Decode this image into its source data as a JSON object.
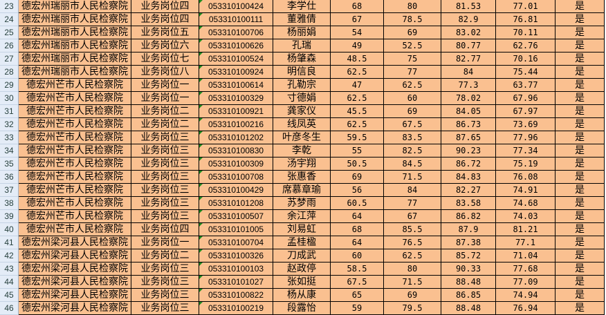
{
  "colors": {
    "cell_fill": "#fac090",
    "row_header": "#e4ecf7",
    "error_indicator": "#1f8a1f"
  },
  "rows": [
    {
      "n": "23",
      "org": "德宏州瑞丽市人民检察院",
      "post": "业务岗位四",
      "id": "053310100424",
      "name": "李学仕",
      "s1": "68",
      "s2": "80",
      "s3": "81.53",
      "total": "77.01",
      "pass": "是"
    },
    {
      "n": "24",
      "org": "德宏州瑞丽市人民检察院",
      "post": "业务岗位四",
      "id": "053310100111",
      "name": "董雅倩",
      "s1": "67",
      "s2": "78.5",
      "s3": "82.9",
      "total": "76.81",
      "pass": "是"
    },
    {
      "n": "25",
      "org": "德宏州瑞丽市人民检察院",
      "post": "业务岗位五",
      "id": "053310100706",
      "name": "杨丽娟",
      "s1": "54",
      "s2": "69",
      "s3": "83.02",
      "total": "70.11",
      "pass": "是"
    },
    {
      "n": "26",
      "org": "德宏州瑞丽市人民检察院",
      "post": "业务岗位六",
      "id": "053310100626",
      "name": "孔瑞",
      "s1": "49",
      "s2": "52.5",
      "s3": "80.77",
      "total": "62.76",
      "pass": "是"
    },
    {
      "n": "27",
      "org": "德宏州瑞丽市人民检察院",
      "post": "业务岗位七",
      "id": "053310100524",
      "name": "杨肇森",
      "s1": "48.5",
      "s2": "75",
      "s3": "82.77",
      "total": "70.16",
      "pass": "是"
    },
    {
      "n": "28",
      "org": "德宏州瑞丽市人民检察院",
      "post": "业务岗位八",
      "id": "053310100924",
      "name": "明信良",
      "s1": "62.5",
      "s2": "77",
      "s3": "84",
      "total": "75.44",
      "pass": "是"
    },
    {
      "n": "29",
      "org": "德宏州芒市人民检察院",
      "post": "业务岗位一",
      "id": "053310100614",
      "name": "孔勒宗",
      "s1": "47",
      "s2": "62.5",
      "s3": "77.3",
      "total": "63.77",
      "pass": "是"
    },
    {
      "n": "30",
      "org": "德宏州芒市人民检察院",
      "post": "业务岗位一",
      "id": "053310100329",
      "name": "寸德娟",
      "s1": "62.5",
      "s2": "60",
      "s3": "78.02",
      "total": "67.96",
      "pass": "是"
    },
    {
      "n": "31",
      "org": "德宏州芒市人民检察院",
      "post": "业务岗位二",
      "id": "053310100921",
      "name": "龚家仪",
      "s1": "45.5",
      "s2": "69",
      "s3": "84.05",
      "total": "67.97",
      "pass": "是"
    },
    {
      "n": "32",
      "org": "德宏州芒市人民检察院",
      "post": "业务岗位二",
      "id": "053310100216",
      "name": "线凤英",
      "s1": "62.5",
      "s2": "67.5",
      "s3": "86.73",
      "total": "73.69",
      "pass": "是"
    },
    {
      "n": "33",
      "org": "德宏州芒市人民检察院",
      "post": "业务岗位三",
      "id": "053310101202",
      "name": "叶彦冬生",
      "s1": "59.5",
      "s2": "83.5",
      "s3": "87.65",
      "total": "77.96",
      "pass": "是"
    },
    {
      "n": "34",
      "org": "德宏州芒市人民检察院",
      "post": "业务岗位三",
      "id": "053310100830",
      "name": "李乾",
      "s1": "55",
      "s2": "82.5",
      "s3": "90.23",
      "total": "77.34",
      "pass": "是"
    },
    {
      "n": "35",
      "org": "德宏州芒市人民检察院",
      "post": "业务岗位三",
      "id": "053310100309",
      "name": "汤宇翔",
      "s1": "50.5",
      "s2": "84.5",
      "s3": "86.72",
      "total": "75.19",
      "pass": "是"
    },
    {
      "n": "36",
      "org": "德宏州芒市人民检察院",
      "post": "业务岗位三",
      "id": "053310100708",
      "name": "张惠香",
      "s1": "69",
      "s2": "71.5",
      "s3": "84.83",
      "total": "76.08",
      "pass": "是"
    },
    {
      "n": "37",
      "org": "德宏州芒市人民检察院",
      "post": "业务岗位三",
      "id": "053310100429",
      "name": "席慕章瑜",
      "s1": "56",
      "s2": "84",
      "s3": "82.27",
      "total": "74.91",
      "pass": "是"
    },
    {
      "n": "38",
      "org": "德宏州芒市人民检察院",
      "post": "业务岗位三",
      "id": "053310101208",
      "name": "苏梦雨",
      "s1": "60.5",
      "s2": "77",
      "s3": "83.58",
      "total": "74.68",
      "pass": "是"
    },
    {
      "n": "39",
      "org": "德宏州芒市人民检察院",
      "post": "业务岗位三",
      "id": "053310100507",
      "name": "余江萍",
      "s1": "64",
      "s2": "67",
      "s3": "86.82",
      "total": "74.03",
      "pass": "是"
    },
    {
      "n": "40",
      "org": "德宏州芒市人民检察院",
      "post": "业务岗位四",
      "id": "053310101005",
      "name": "刘易虹",
      "s1": "68",
      "s2": "85.5",
      "s3": "87.9",
      "total": "81.21",
      "pass": "是"
    },
    {
      "n": "41",
      "org": "德宏州梁河县人民检察院",
      "post": "业务岗位一",
      "id": "053310100704",
      "name": "孟桂楹",
      "s1": "64",
      "s2": "76.5",
      "s3": "87.38",
      "total": "77.1",
      "pass": "是"
    },
    {
      "n": "42",
      "org": "德宏州梁河县人民检察院",
      "post": "业务岗位二",
      "id": "053310100326",
      "name": "刀成武",
      "s1": "60",
      "s2": "62.5",
      "s3": "85.72",
      "total": "71.04",
      "pass": "是"
    },
    {
      "n": "43",
      "org": "德宏州梁河县人民检察院",
      "post": "业务岗位三",
      "id": "053310100103",
      "name": "赵政停",
      "s1": "58.5",
      "s2": "80",
      "s3": "90.33",
      "total": "77.68",
      "pass": "是"
    },
    {
      "n": "44",
      "org": "德宏州梁河县人民检察院",
      "post": "业务岗位三",
      "id": "053310101027",
      "name": "张如挺",
      "s1": "67.5",
      "s2": "71.5",
      "s3": "88.48",
      "total": "77.09",
      "pass": "是"
    },
    {
      "n": "45",
      "org": "德宏州梁河县人民检察院",
      "post": "业务岗位三",
      "id": "053310100822",
      "name": "杨从康",
      "s1": "65",
      "s2": "69",
      "s3": "86.85",
      "total": "74.94",
      "pass": "是"
    },
    {
      "n": "46",
      "org": "德宏州梁河县人民检察院",
      "post": "业务岗位三",
      "id": "053310100219",
      "name": "段露怡",
      "s1": "59",
      "s2": "79.5",
      "s3": "88.48",
      "total": "76.94",
      "pass": "是"
    }
  ]
}
